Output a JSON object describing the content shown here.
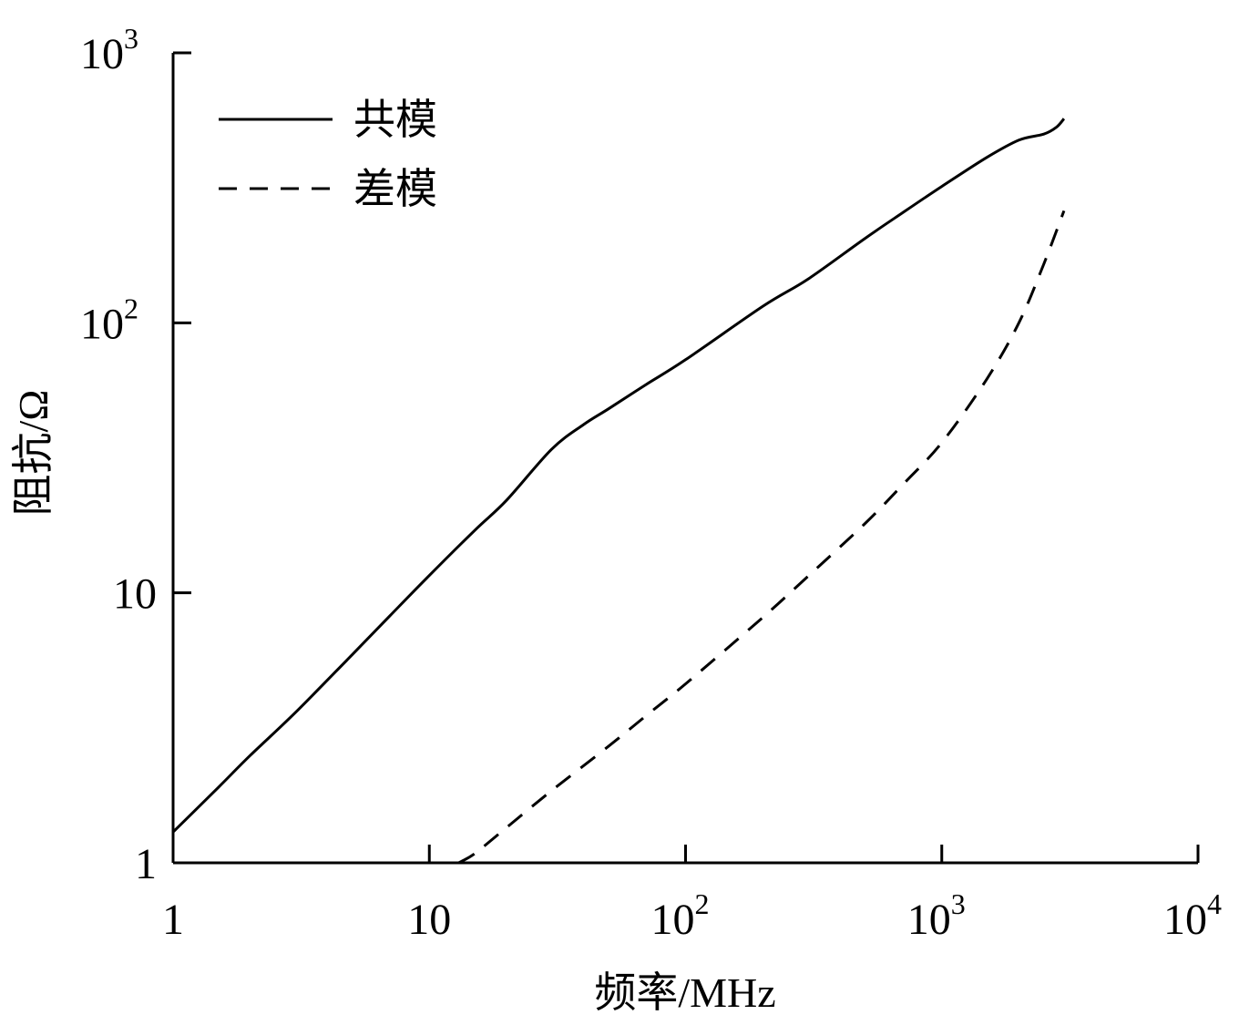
{
  "chart_data": {
    "type": "line",
    "title": "",
    "xlabel": "频率/MHz",
    "ylabel": "阻抗/Ω",
    "x_scale": "log",
    "y_scale": "log",
    "xlim": [
      1,
      10000
    ],
    "ylim": [
      1,
      1000
    ],
    "grid": false,
    "legend_position": "top-left",
    "x_ticks": [
      {
        "value": 1,
        "base": "1",
        "exp": ""
      },
      {
        "value": 10,
        "base": "10",
        "exp": ""
      },
      {
        "value": 100,
        "base": "10",
        "exp": "2"
      },
      {
        "value": 1000,
        "base": "10",
        "exp": "3"
      },
      {
        "value": 10000,
        "base": "10",
        "exp": "4"
      }
    ],
    "y_ticks": [
      {
        "value": 1,
        "base": "1",
        "exp": ""
      },
      {
        "value": 10,
        "base": "10",
        "exp": ""
      },
      {
        "value": 100,
        "base": "10",
        "exp": "2"
      },
      {
        "value": 1000,
        "base": "10",
        "exp": "3"
      }
    ],
    "series": [
      {
        "name": "共模",
        "style": "solid",
        "color": "#000000",
        "points": [
          [
            1,
            1.3
          ],
          [
            1.5,
            1.9
          ],
          [
            2,
            2.5
          ],
          [
            3,
            3.6
          ],
          [
            5,
            5.9
          ],
          [
            7,
            8.2
          ],
          [
            10,
            11.6
          ],
          [
            15,
            17
          ],
          [
            20,
            22
          ],
          [
            30,
            34
          ],
          [
            40,
            42
          ],
          [
            50,
            48
          ],
          [
            70,
            59
          ],
          [
            100,
            73
          ],
          [
            200,
            115
          ],
          [
            300,
            145
          ],
          [
            500,
            205
          ],
          [
            700,
            255
          ],
          [
            1000,
            320
          ],
          [
            1500,
            410
          ],
          [
            2000,
            475
          ],
          [
            2500,
            500
          ],
          [
            2800,
            530
          ],
          [
            3000,
            570
          ]
        ]
      },
      {
        "name": "差模",
        "style": "dashed",
        "color": "#000000",
        "points": [
          [
            13,
            1.0
          ],
          [
            15,
            1.08
          ],
          [
            20,
            1.35
          ],
          [
            30,
            1.85
          ],
          [
            50,
            2.7
          ],
          [
            70,
            3.5
          ],
          [
            100,
            4.6
          ],
          [
            200,
            8.1
          ],
          [
            300,
            11.5
          ],
          [
            500,
            18
          ],
          [
            700,
            25
          ],
          [
            1000,
            36
          ],
          [
            1500,
            62
          ],
          [
            2000,
            100
          ],
          [
            2500,
            165
          ],
          [
            3000,
            260
          ]
        ]
      }
    ]
  }
}
